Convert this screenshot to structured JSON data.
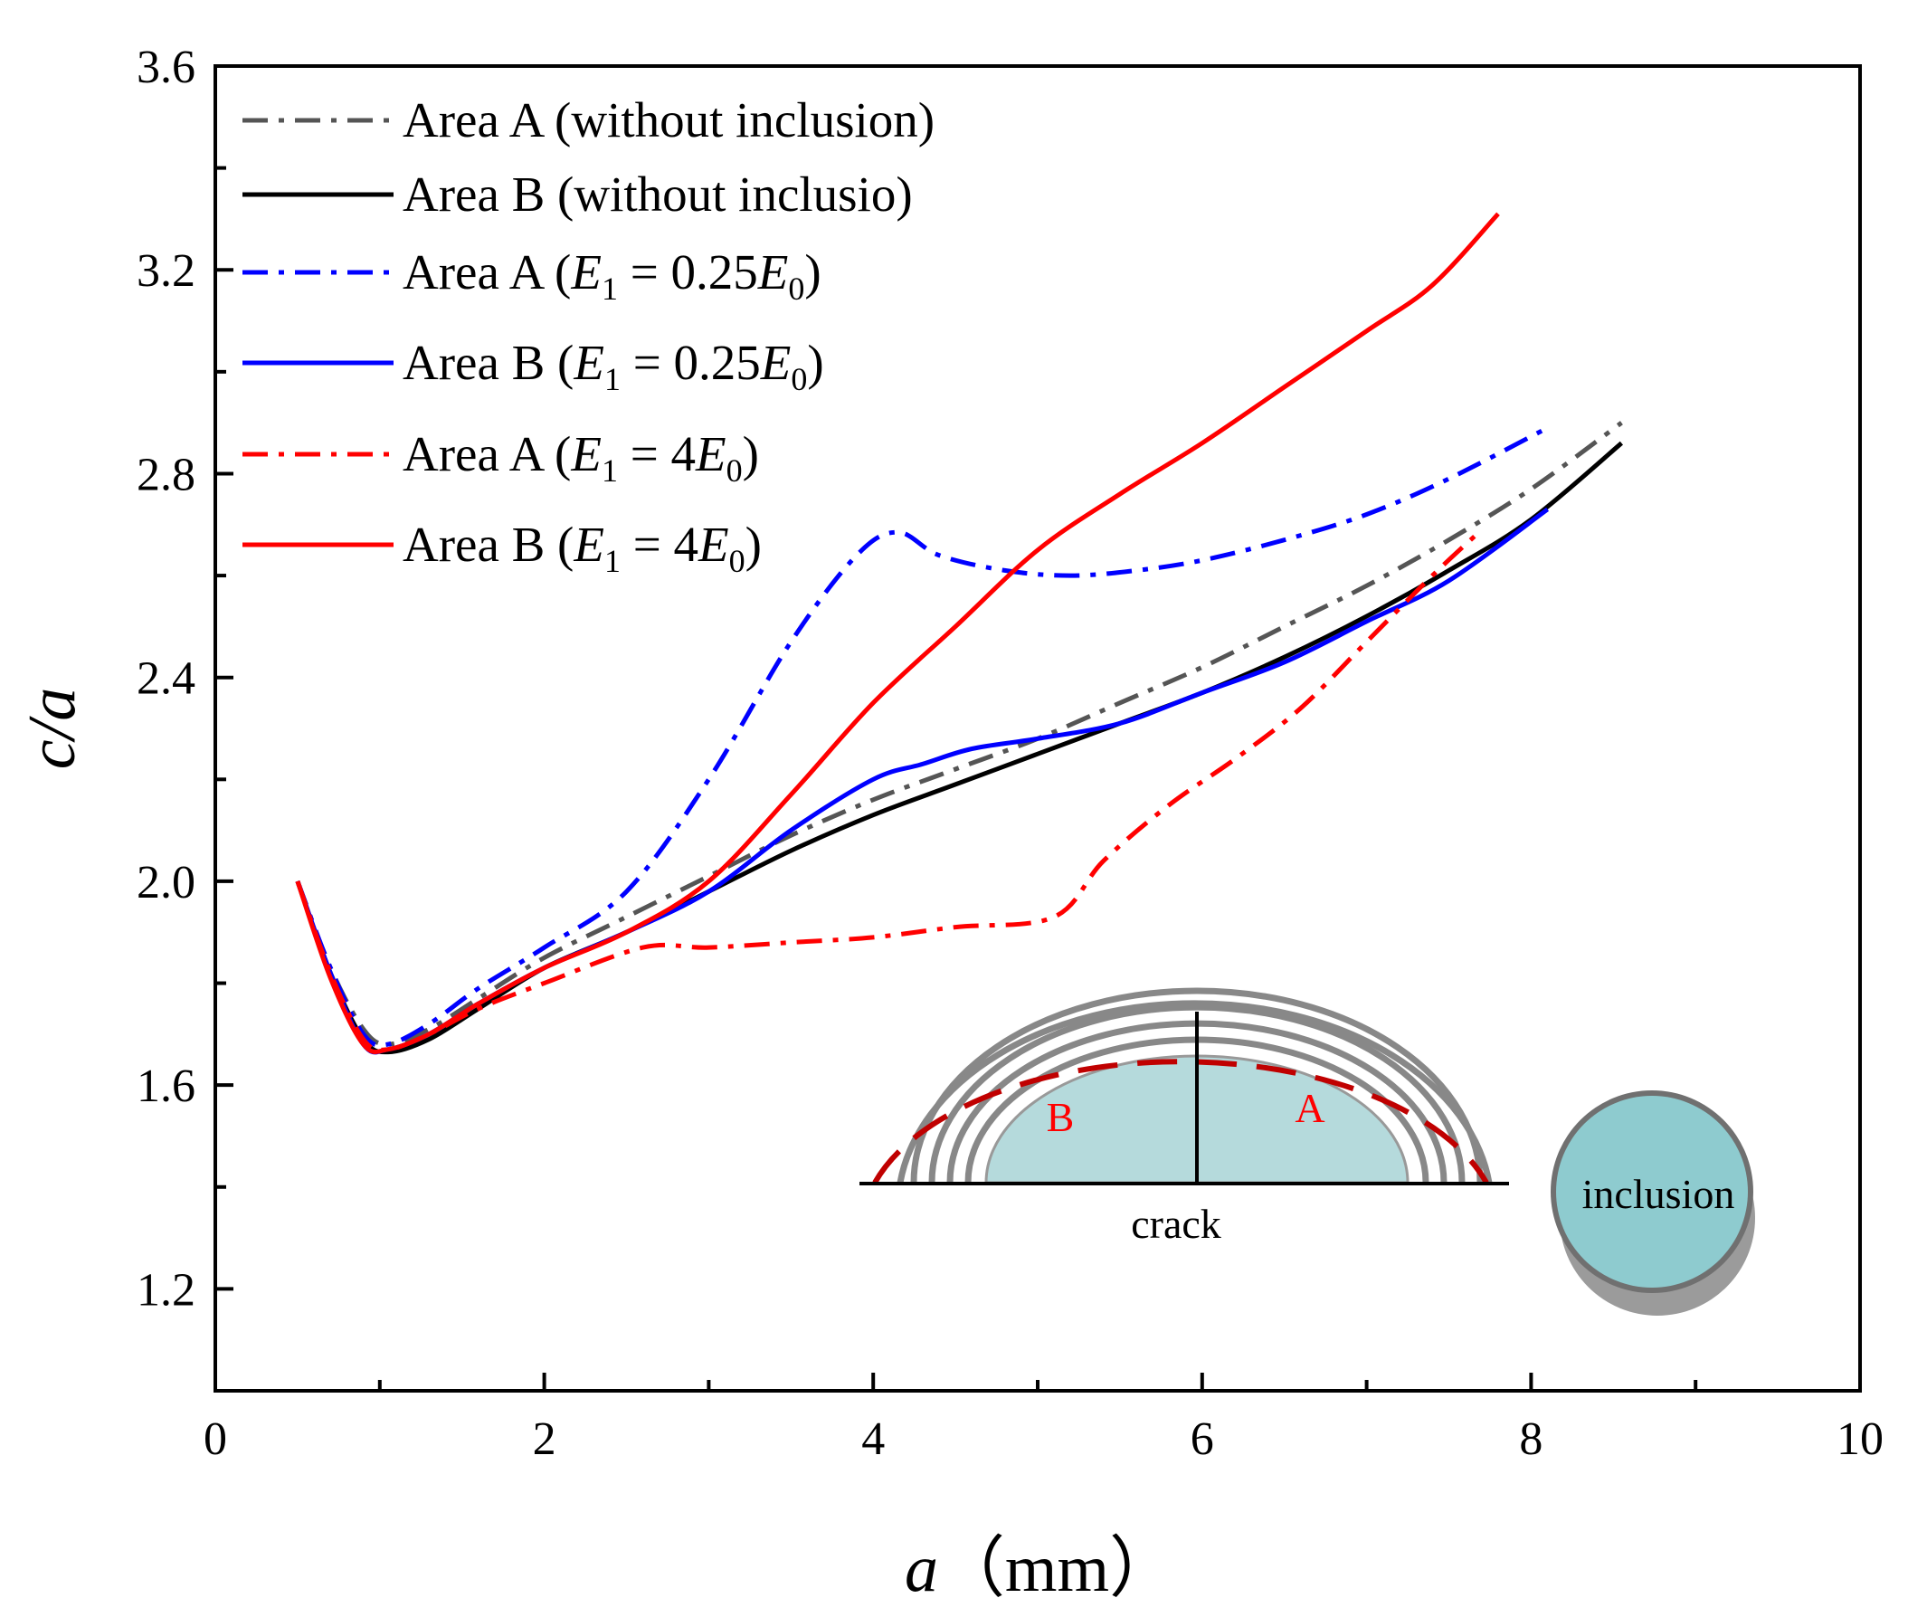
{
  "chart_data": {
    "type": "line",
    "xlabel_var": "a",
    "xlabel_unit": "（mm）",
    "ylabel": "c/a",
    "xlim": [
      0,
      10
    ],
    "ylim": [
      1.0,
      3.6
    ],
    "xticks": [
      "0",
      "2",
      "4",
      "6",
      "8",
      "10"
    ],
    "yticks": [
      "1.2",
      "1.6",
      "2.0",
      "2.4",
      "2.8",
      "3.2",
      "3.6"
    ],
    "legend_position": "top-left",
    "series": [
      {
        "name": "Area A (without inclusion)",
        "color": "#555555",
        "style": "dashdot",
        "x": [
          0.5,
          0.7,
          0.9,
          1.05,
          1.3,
          1.6,
          2.0,
          2.5,
          3.0,
          3.5,
          4.0,
          4.5,
          5.0,
          5.5,
          6.0,
          6.5,
          7.0,
          7.5,
          8.0,
          8.55
        ],
        "y": [
          2.0,
          1.83,
          1.71,
          1.68,
          1.71,
          1.77,
          1.85,
          1.93,
          2.01,
          2.09,
          2.16,
          2.22,
          2.28,
          2.35,
          2.42,
          2.5,
          2.58,
          2.67,
          2.77,
          2.9
        ]
      },
      {
        "name": "Area B (without inclusio)",
        "color": "#000000",
        "style": "solid",
        "x": [
          0.5,
          0.7,
          0.9,
          1.05,
          1.3,
          1.6,
          2.0,
          2.5,
          3.0,
          3.5,
          4.0,
          4.5,
          5.0,
          5.5,
          6.0,
          6.5,
          7.0,
          7.5,
          8.0,
          8.55
        ],
        "y": [
          2.0,
          1.82,
          1.69,
          1.665,
          1.69,
          1.75,
          1.83,
          1.9,
          1.98,
          2.06,
          2.13,
          2.19,
          2.25,
          2.31,
          2.37,
          2.44,
          2.52,
          2.61,
          2.71,
          2.86
        ]
      },
      {
        "name": "Area A (E1 = 0.25E0)",
        "color": "#0000ff",
        "style": "dashdot",
        "x": [
          0.5,
          0.7,
          0.9,
          1.05,
          1.3,
          1.6,
          2.0,
          2.5,
          3.0,
          3.5,
          3.9,
          4.15,
          4.4,
          4.8,
          5.2,
          5.6,
          6.0,
          6.5,
          7.0,
          7.5,
          8.1
        ],
        "y": [
          2.0,
          1.83,
          1.7,
          1.68,
          1.72,
          1.79,
          1.87,
          1.98,
          2.2,
          2.47,
          2.64,
          2.685,
          2.64,
          2.61,
          2.6,
          2.61,
          2.63,
          2.67,
          2.72,
          2.79,
          2.89
        ]
      },
      {
        "name": "Area B (E1 = 0.25E0)",
        "color": "#0000ff",
        "style": "solid",
        "x": [
          0.5,
          0.7,
          0.9,
          1.05,
          1.3,
          1.6,
          2.0,
          2.5,
          3.0,
          3.5,
          4.0,
          4.3,
          4.6,
          5.0,
          5.5,
          6.0,
          6.5,
          7.0,
          7.5,
          8.1
        ],
        "y": [
          2.0,
          1.82,
          1.68,
          1.67,
          1.7,
          1.76,
          1.83,
          1.9,
          1.98,
          2.1,
          2.2,
          2.23,
          2.26,
          2.28,
          2.31,
          2.37,
          2.43,
          2.51,
          2.59,
          2.73
        ]
      },
      {
        "name": "Area A (E1 = 4E0)",
        "color": "#ff0000",
        "style": "dashdot",
        "x": [
          0.5,
          0.7,
          0.9,
          1.05,
          1.3,
          1.6,
          2.0,
          2.6,
          3.0,
          3.5,
          4.0,
          4.5,
          5.1,
          5.4,
          5.8,
          6.2,
          6.6,
          7.0,
          7.4,
          7.7
        ],
        "y": [
          2.0,
          1.82,
          1.69,
          1.67,
          1.7,
          1.75,
          1.8,
          1.87,
          1.87,
          1.88,
          1.89,
          1.91,
          1.93,
          2.04,
          2.15,
          2.24,
          2.34,
          2.47,
          2.6,
          2.69
        ]
      },
      {
        "name": "Area B (E1 = 4E0)",
        "color": "#ff0000",
        "style": "solid",
        "x": [
          0.5,
          0.7,
          0.9,
          1.05,
          1.3,
          1.6,
          2.0,
          2.5,
          3.0,
          3.5,
          4.0,
          4.5,
          5.0,
          5.5,
          6.0,
          6.5,
          7.0,
          7.4,
          7.8
        ],
        "y": [
          2.0,
          1.81,
          1.68,
          1.67,
          1.7,
          1.76,
          1.83,
          1.9,
          2.0,
          2.17,
          2.35,
          2.5,
          2.65,
          2.76,
          2.86,
          2.97,
          3.08,
          3.17,
          3.31
        ]
      }
    ],
    "inset": {
      "label_b": "B",
      "label_a": "A",
      "label_crack": "crack",
      "label_inclusion": "inclusion",
      "crack_fill": "#b5dadc",
      "inclusion_fill": "#8ecbcf",
      "arc_color": "#888888",
      "outer_arc_color": "#c00000"
    }
  }
}
